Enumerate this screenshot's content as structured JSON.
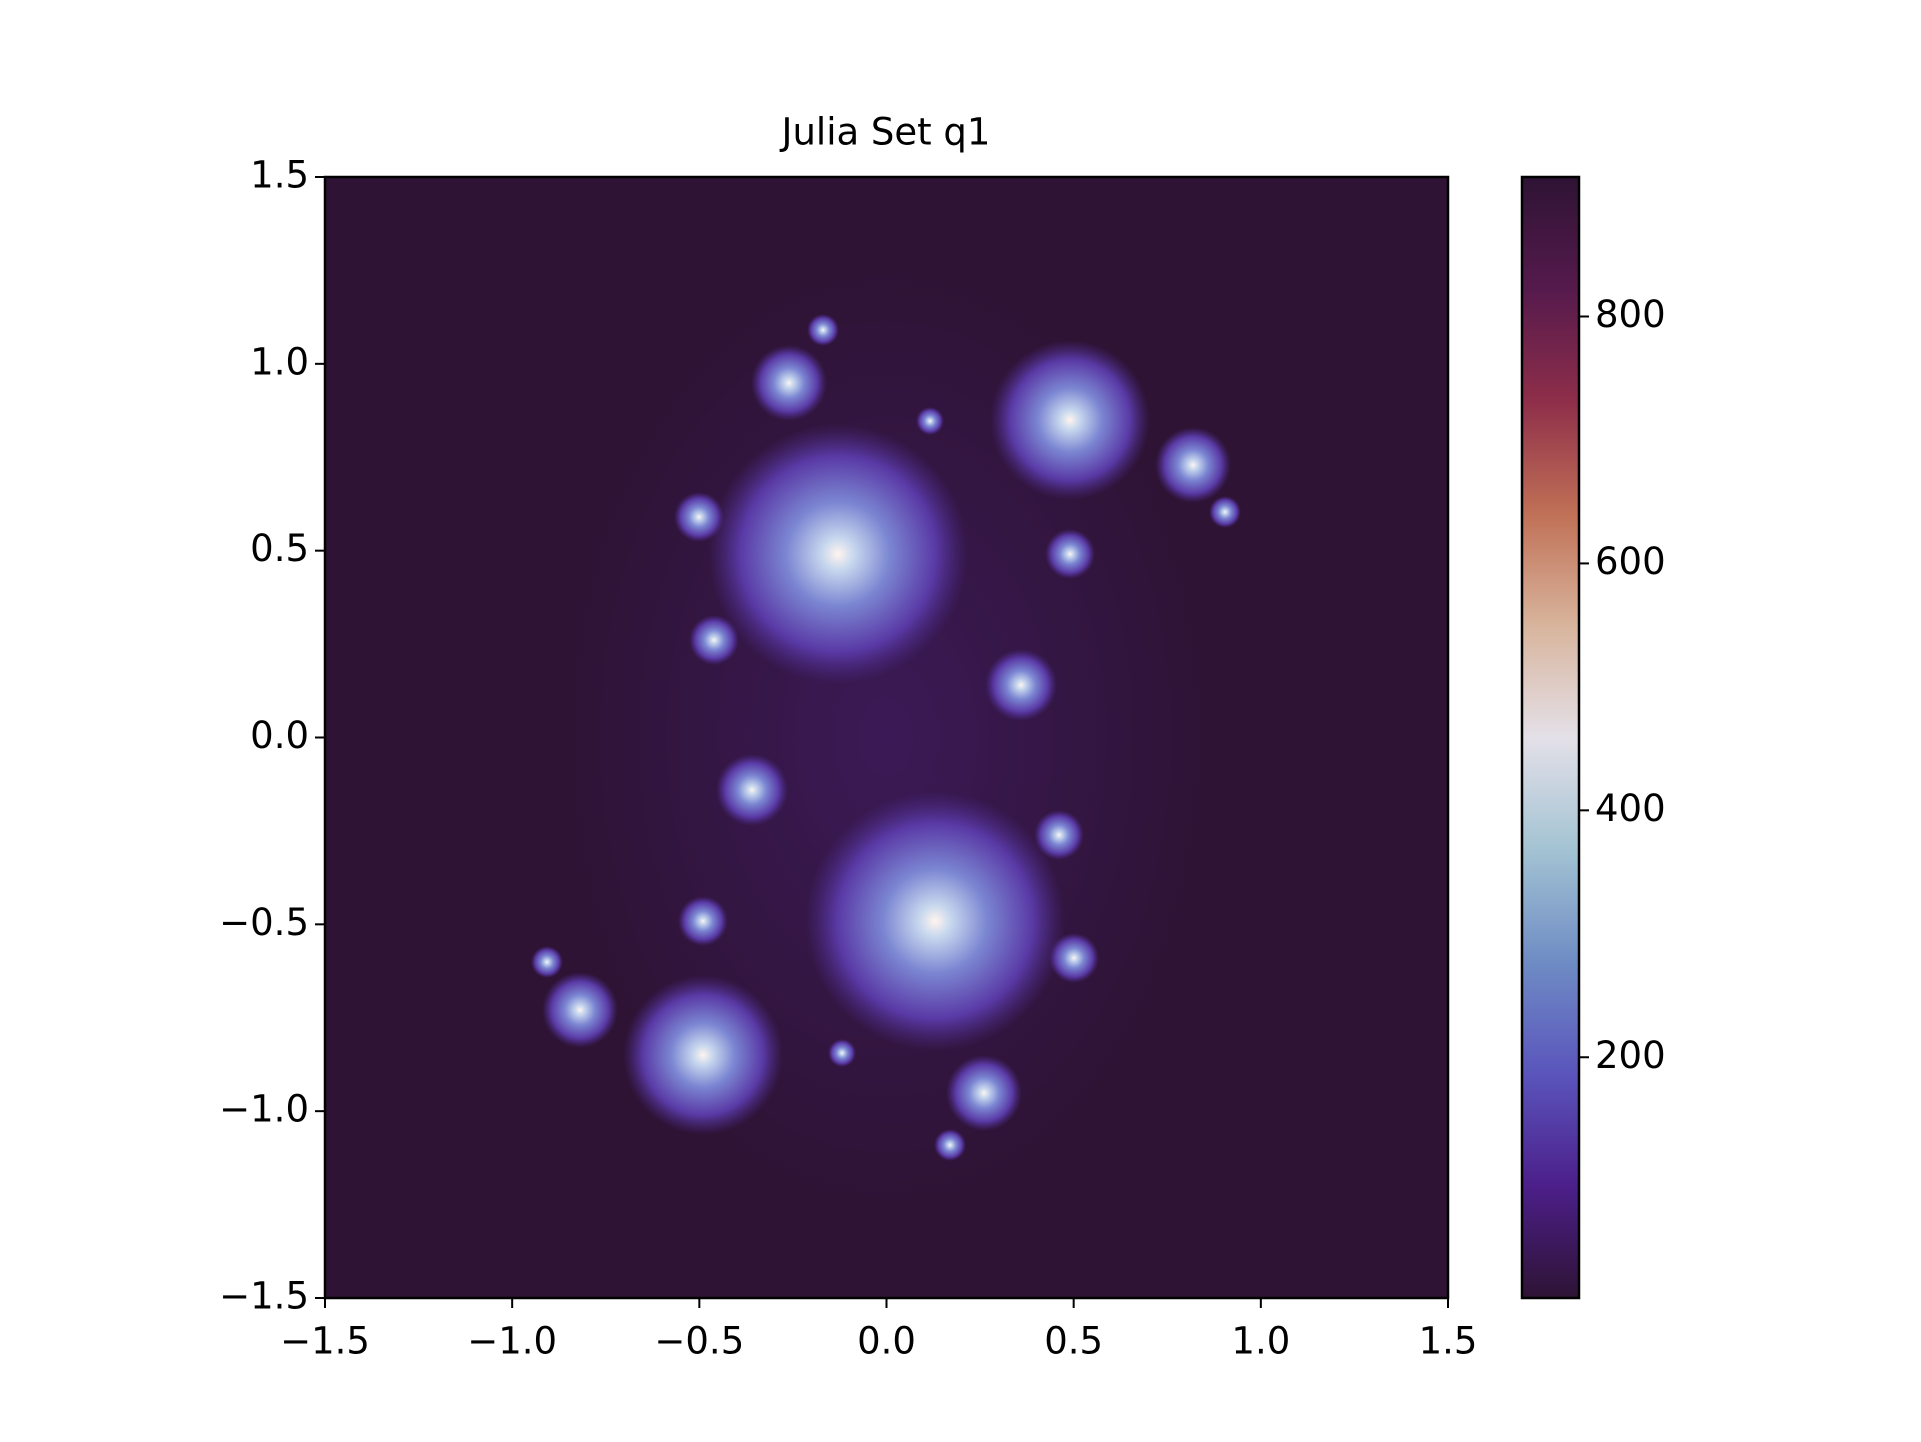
{
  "chart_data": {
    "type": "image",
    "title": "Julia Set q1",
    "xlim": [
      -1.5,
      1.5
    ],
    "ylim": [
      -1.5,
      1.5
    ],
    "xticks": [
      {
        "value": -1.5,
        "label": "−1.5"
      },
      {
        "value": -1.0,
        "label": "−1.0"
      },
      {
        "value": -0.5,
        "label": "−0.5"
      },
      {
        "value": 0,
        "label": "0.0"
      },
      0.5,
      {
        "value": 1.0,
        "label": "1.0"
      },
      1.5
    ],
    "yticks": [
      {
        "value": -1.5,
        "label": "−1.5"
      },
      {
        "value": -1.0,
        "label": "−1.0"
      },
      {
        "value": -0.5,
        "label": "−0.5"
      },
      {
        "value": 0,
        "label": "0.0"
      },
      0.5,
      {
        "value": 1.0,
        "label": "1.0"
      },
      1.5
    ],
    "background": "#2e1334",
    "colorbar": {
      "clim": [
        5,
        913
      ],
      "ticks": [
        200,
        400,
        600,
        800
      ],
      "colormap": [
        "#2e1334",
        "#4c1f8a",
        "#5a55bc",
        "#6f8cc4",
        "#a3c3d3",
        "#e4e0e8",
        "#d8b49c",
        "#c07056",
        "#8e2e4a",
        "#551a4c",
        "#2e1334"
      ]
    }
  }
}
